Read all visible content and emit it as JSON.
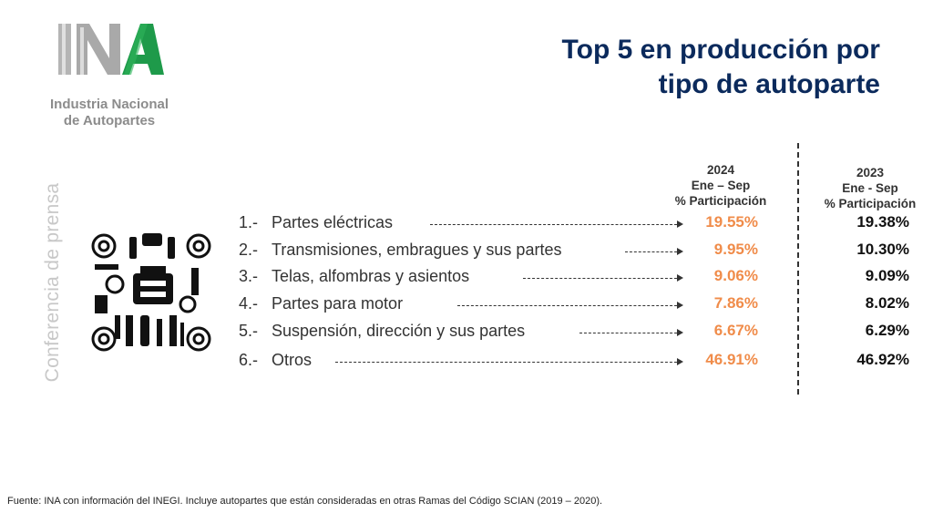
{
  "logo": {
    "line1": "Industria Nacional",
    "line2": "de Autopartes"
  },
  "title": {
    "line1": "Top 5 en producción por",
    "line2": "tipo de autoparte"
  },
  "side_label": "Conferencia de prensa",
  "columns": {
    "y2024": {
      "year": "2024",
      "period": "Ene – Sep",
      "metric": "% Participación"
    },
    "y2023": {
      "year": "2023",
      "period": "Ene - Sep",
      "metric": "% Participación"
    }
  },
  "rows": [
    {
      "num": "1.-",
      "label": "Partes eléctricas",
      "v2024": "19.55%",
      "v2023": "19.38%"
    },
    {
      "num": "2.-",
      "label": "Transmisiones, embragues y sus partes",
      "v2024": "9.95%",
      "v2023": "10.30%"
    },
    {
      "num": "3.-",
      "label": "Telas, alfombras y asientos",
      "v2024": "9.06%",
      "v2023": "9.09%"
    },
    {
      "num": "4.-",
      "label": "Partes para motor",
      "v2024": "7.86%",
      "v2023": "8.02%"
    },
    {
      "num": "5.-",
      "label": "Suspensión, dirección y sus partes",
      "v2024": "6.67%",
      "v2023": "6.29%"
    },
    {
      "num": "6.-",
      "label": "Otros",
      "v2024": "46.91%",
      "v2023": "46.92%"
    }
  ],
  "footer": "Fuente: INA con información del INEGI. Incluye autopartes que están consideradas en otras Ramas del Código SCIAN (2019 – 2020).",
  "colors": {
    "title": "#0b2a5c",
    "accent_2024": "#f08c4a",
    "logo_green": "#1e9a4a",
    "logo_gray": "#8c8c8c"
  },
  "icons": [
    "ina-logo-icon",
    "auto-parts-collage-icon"
  ]
}
